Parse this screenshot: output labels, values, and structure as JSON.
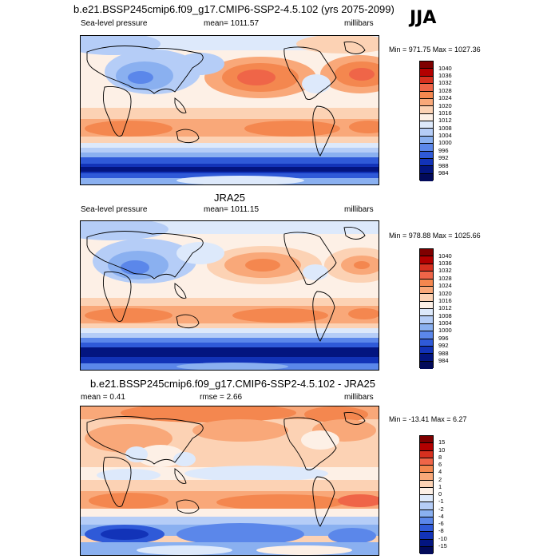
{
  "season": "JJA",
  "panels": [
    {
      "title": "b.e21.BSSP245cmip6.f09_g17.CMIP6-SSP2-4.5.102 (yrs 2075-2099)",
      "left_label": "Sea-level pressure",
      "center_label": "mean= 1011.57",
      "right_label": "millibars",
      "minmax": "Min = 971.75 Max = 1027.36",
      "levels": [
        "1040",
        "1036",
        "1032",
        "1028",
        "1024",
        "1020",
        "1016",
        "1012",
        "1008",
        "1004",
        "1000",
        "996",
        "992",
        "988",
        "984"
      ]
    },
    {
      "title": "JRA25",
      "left_label": "Sea-level pressure",
      "center_label": "mean= 1011.15",
      "right_label": "millibars",
      "minmax": "Min = 978.88 Max = 1025.66",
      "levels": [
        "1040",
        "1036",
        "1032",
        "1028",
        "1024",
        "1020",
        "1016",
        "1012",
        "1008",
        "1004",
        "1000",
        "996",
        "992",
        "988",
        "984"
      ]
    },
    {
      "title": "b.e21.BSSP245cmip6.f09_g17.CMIP6-SSP2-4.5.102 - JRA25",
      "left_label": "mean =  0.41",
      "center_label": "rmse =   2.66",
      "right_label": "millibars",
      "minmax": "Min = -13.41 Max =  6.27",
      "levels": [
        "15",
        "10",
        "8",
        "6",
        "4",
        "2",
        "1",
        "0",
        "-1",
        "-2",
        "-4",
        "-6",
        "-8",
        "-10",
        "-15"
      ]
    }
  ],
  "colors": {
    "abs_scale": [
      "#7f0000",
      "#b30000",
      "#d7301f",
      "#ef6548",
      "#f4874f",
      "#f9a879",
      "#fcd2b4",
      "#fdf0e6",
      "#dde9fb",
      "#b5cdf7",
      "#8ab0f0",
      "#5b87ea",
      "#2f5ad8",
      "#1233b8",
      "#031580",
      "#020a5a"
    ],
    "diff_scale": [
      "#7f0000",
      "#b30000",
      "#d7301f",
      "#ef6548",
      "#f4874f",
      "#f9a879",
      "#fcd2b4",
      "#fdf0e6",
      "#dde9fb",
      "#b5cdf7",
      "#8ab0f0",
      "#5b87ea",
      "#2f5ad8",
      "#1233b8",
      "#031580",
      "#020a5a"
    ]
  }
}
